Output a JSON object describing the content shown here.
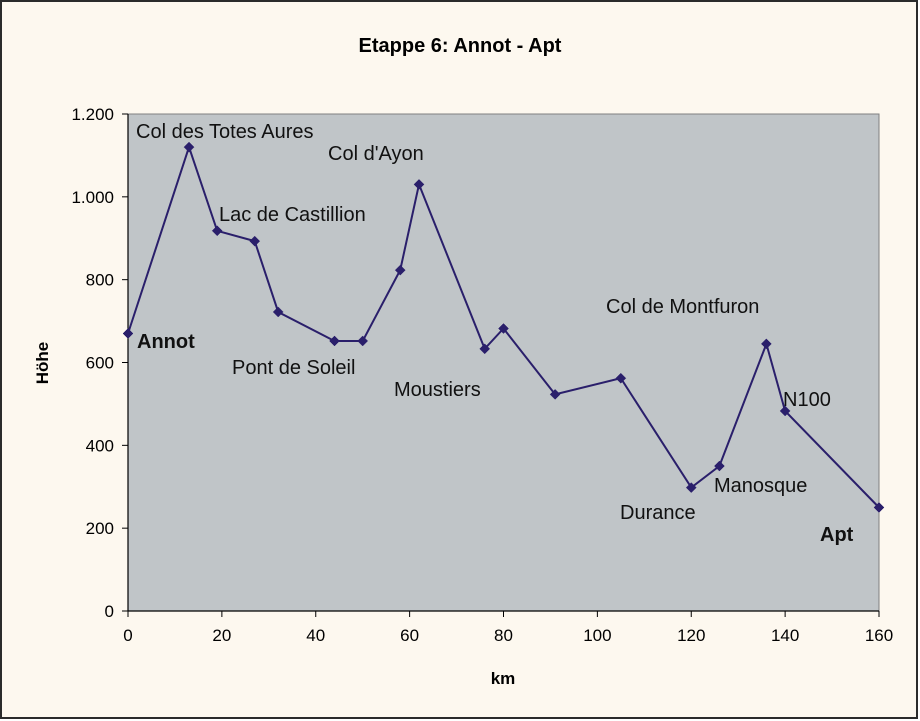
{
  "chart_data": {
    "type": "line",
    "title": "Etappe 6:  Annot - Apt",
    "xlabel": "km",
    "ylabel": "Höhe",
    "xlim": [
      0,
      160
    ],
    "ylim": [
      0,
      1200
    ],
    "x_ticks": [
      0,
      20,
      40,
      60,
      80,
      100,
      120,
      140,
      160
    ],
    "y_ticks": [
      0,
      200,
      400,
      600,
      800,
      1000,
      1200
    ],
    "y_tick_labels": [
      "0",
      "200",
      "400",
      "600",
      "800",
      "1.000",
      "1.200"
    ],
    "grid": false,
    "plot_background": "#c0c5c8",
    "line_color": "#2a1f6b",
    "series": [
      {
        "x": [
          0,
          13,
          19,
          27,
          32,
          44,
          50,
          58,
          62,
          76,
          80,
          91,
          105,
          120,
          126,
          136,
          140,
          160
        ],
        "y": [
          670,
          1120,
          918,
          893,
          722,
          652,
          652,
          823,
          1030,
          633,
          682,
          523,
          562,
          298,
          350,
          645,
          483,
          250
        ]
      }
    ],
    "annotations": [
      {
        "text": "Annot",
        "bold": true
      },
      {
        "text": "Col des Totes Aures",
        "bold": false
      },
      {
        "text": "Lac de Castillion",
        "bold": false
      },
      {
        "text": "Pont de Soleil",
        "bold": false
      },
      {
        "text": "Col d'Ayon",
        "bold": false
      },
      {
        "text": "Moustiers",
        "bold": false
      },
      {
        "text": "Col de Montfuron",
        "bold": false
      },
      {
        "text": "N100",
        "bold": false
      },
      {
        "text": "Manosque",
        "bold": false
      },
      {
        "text": "Durance",
        "bold": false
      },
      {
        "text": "Apt",
        "bold": true
      }
    ]
  }
}
